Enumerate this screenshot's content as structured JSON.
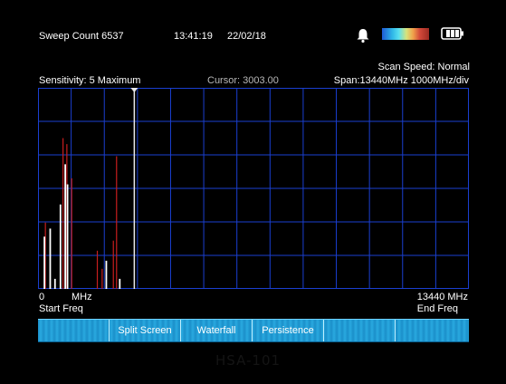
{
  "header": {
    "sweep_count": "Sweep Count 6537",
    "time": "13:41:19",
    "date": "22/02/18",
    "icons": [
      "bell-icon",
      "color-scale-bar",
      "battery-icon"
    ]
  },
  "info": {
    "sensitivity": "Sensitivity: 5 Maximum",
    "cursor": "Cursor: 3003.00",
    "scan_speed": "Scan Speed: Normal",
    "span": "Span:13440MHz 1000MHz/div"
  },
  "axis": {
    "start_value": "0",
    "start_unit": "MHz",
    "start_label": "Start Freq",
    "end_value": "13440 MHz",
    "end_label": "End Freq"
  },
  "spectrum": {
    "freq_min": 0,
    "freq_max": 13440,
    "cursor_freq": 3003.0,
    "grid_divisions_x": 13,
    "grid_divisions_y": 6,
    "colors": {
      "grid": "#1a3fd0",
      "cursor": "#e8e8e8",
      "peak": "#c81e1e",
      "trace": "#ffffff"
    },
    "peak_hold": [
      {
        "freq": 230,
        "level": 0.33
      },
      {
        "freq": 780,
        "level": 0.75
      },
      {
        "freq": 900,
        "level": 0.72
      },
      {
        "freq": 1050,
        "level": 0.55
      },
      {
        "freq": 1850,
        "level": 0.19
      },
      {
        "freq": 2000,
        "level": 0.1
      },
      {
        "freq": 2350,
        "level": 0.24
      },
      {
        "freq": 2450,
        "level": 0.66
      }
    ],
    "trace": [
      {
        "freq": 200,
        "level": 0.26
      },
      {
        "freq": 380,
        "level": 0.3
      },
      {
        "freq": 530,
        "level": 0.05
      },
      {
        "freq": 700,
        "level": 0.42
      },
      {
        "freq": 850,
        "level": 0.62
      },
      {
        "freq": 920,
        "level": 0.52
      },
      {
        "freq": 2130,
        "level": 0.14
      },
      {
        "freq": 2550,
        "level": 0.05
      }
    ]
  },
  "softkeys": [
    "",
    "Split Screen",
    "Waterfall",
    "Persistence",
    "",
    ""
  ],
  "watermark": "HSA-101"
}
